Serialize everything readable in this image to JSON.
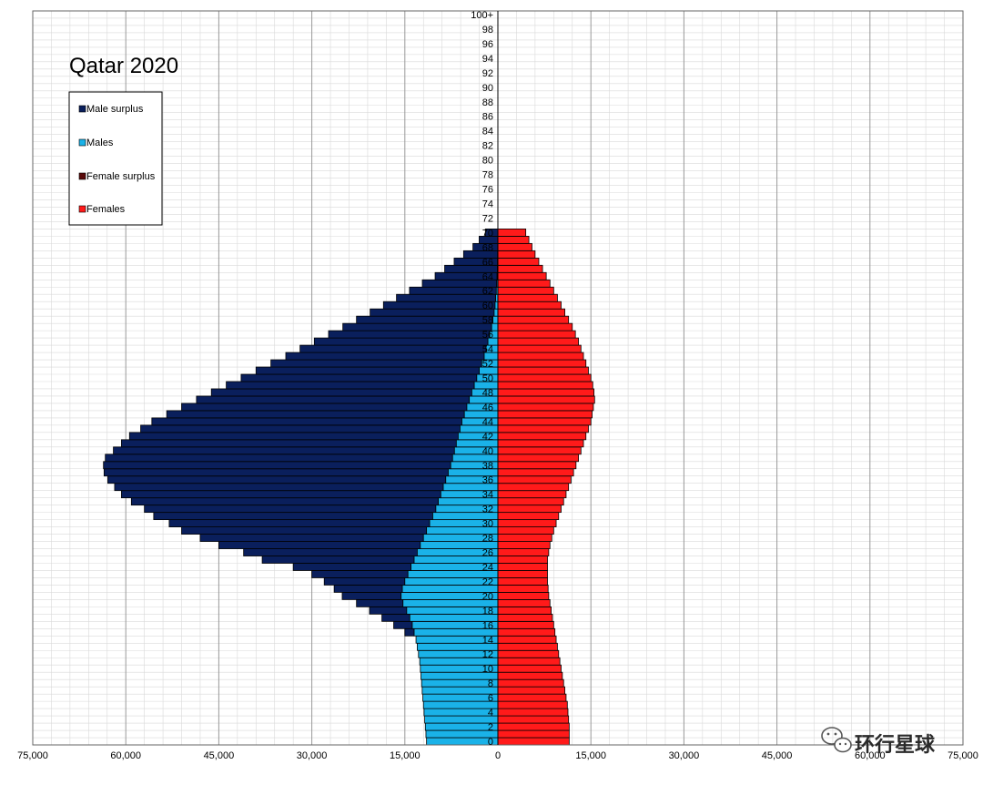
{
  "chart_data": {
    "type": "bar",
    "orientation": "horizontal-population-pyramid",
    "title": "Qatar 2020",
    "xlim": [
      -75000,
      75000
    ],
    "x_ticks": [
      -75000,
      -60000,
      -45000,
      -30000,
      -15000,
      0,
      15000,
      30000,
      45000,
      60000,
      75000
    ],
    "x_tick_labels": [
      "75,000",
      "60,000",
      "45,000",
      "30,000",
      "15,000",
      "0",
      "15,000",
      "30,000",
      "45,000",
      "60,000",
      "75,000"
    ],
    "age_tick_labels": [
      "0",
      "2",
      "4",
      "6",
      "8",
      "10",
      "12",
      "14",
      "16",
      "18",
      "20",
      "22",
      "24",
      "26",
      "28",
      "30",
      "32",
      "34",
      "36",
      "38",
      "40",
      "42",
      "44",
      "46",
      "48",
      "50",
      "52",
      "54",
      "56",
      "58",
      "60",
      "62",
      "64",
      "66",
      "68",
      "70",
      "72",
      "74",
      "76",
      "78",
      "80",
      "82",
      "84",
      "86",
      "88",
      "90",
      "92",
      "94",
      "96",
      "98",
      "100+"
    ],
    "legend": {
      "placement": "top-left",
      "entries": [
        {
          "name": "Male surplus",
          "color": "#0a1f5c"
        },
        {
          "name": "Males",
          "color": "#1ab2e8"
        },
        {
          "name": "Female surplus",
          "color": "#5a0a0a"
        },
        {
          "name": "Females",
          "color": "#ff1a1a"
        }
      ]
    },
    "colors": {
      "male_surplus": "#0a1f5c",
      "males": "#1ab2e8",
      "female_surplus": "#5a0a0a",
      "females": "#ff1a1a",
      "grid_major": "#999999",
      "grid_minor": "#d9d9d9"
    },
    "grid": true,
    "series": [
      {
        "name": "Males",
        "values": [
          11500,
          11600,
          11700,
          11800,
          11900,
          12000,
          12100,
          12200,
          12300,
          12400,
          12500,
          12600,
          12800,
          13000,
          13200,
          13500,
          13800,
          14200,
          14700,
          15300,
          15600,
          15400,
          15000,
          14500,
          14000,
          13500,
          13000,
          12500,
          12000,
          11500,
          11000,
          10500,
          10000,
          9600,
          9200,
          8800,
          8400,
          8000,
          7600,
          7300,
          7000,
          6700,
          6400,
          6100,
          5800,
          5400,
          5000,
          4600,
          4200,
          3800,
          3400,
          3000,
          2600,
          2200,
          1900,
          1600,
          1300,
          1000,
          800,
          600,
          450,
          350,
          250,
          180,
          120,
          80,
          50,
          30,
          20,
          15,
          10
        ]
      },
      {
        "name": "Male surplus",
        "values": [
          0,
          0,
          0,
          0,
          0,
          0,
          0,
          0,
          0,
          0,
          0,
          0,
          0,
          0,
          0,
          1500,
          3000,
          4500,
          6000,
          7500,
          9500,
          11000,
          13000,
          15500,
          19000,
          24500,
          28000,
          32500,
          36000,
          39500,
          42000,
          45000,
          47000,
          49500,
          51500,
          53000,
          54500,
          55500,
          56000,
          56000,
          55000,
          54000,
          53000,
          51500,
          50000,
          48000,
          46000,
          44000,
          42000,
          40000,
          38000,
          36000,
          34000,
          32000,
          30000,
          28000,
          26000,
          24000,
          22000,
          20000,
          18000,
          16000,
          14000,
          12000,
          10000,
          8500,
          7000,
          5500,
          4000,
          3000,
          2000
        ]
      },
      {
        "name": "Females",
        "values": [
          11500,
          11500,
          11500,
          11400,
          11300,
          11200,
          11000,
          10800,
          10600,
          10400,
          10200,
          10000,
          9800,
          9600,
          9400,
          9200,
          9000,
          8800,
          8600,
          8400,
          8200,
          8100,
          8000,
          8000,
          8000,
          8000,
          8200,
          8400,
          8700,
          9000,
          9400,
          9800,
          10200,
          10600,
          11000,
          11400,
          11800,
          12200,
          12600,
          13000,
          13400,
          13800,
          14200,
          14600,
          15000,
          15200,
          15400,
          15600,
          15500,
          15300,
          15000,
          14600,
          14200,
          13800,
          13400,
          13000,
          12500,
          12000,
          11400,
          10800,
          10200,
          9600,
          9000,
          8400,
          7800,
          7200,
          6600,
          6000,
          5500,
          5000,
          4500
        ]
      }
    ]
  },
  "watermark": {
    "icon": "wechat-icon",
    "text": "环行星球"
  }
}
